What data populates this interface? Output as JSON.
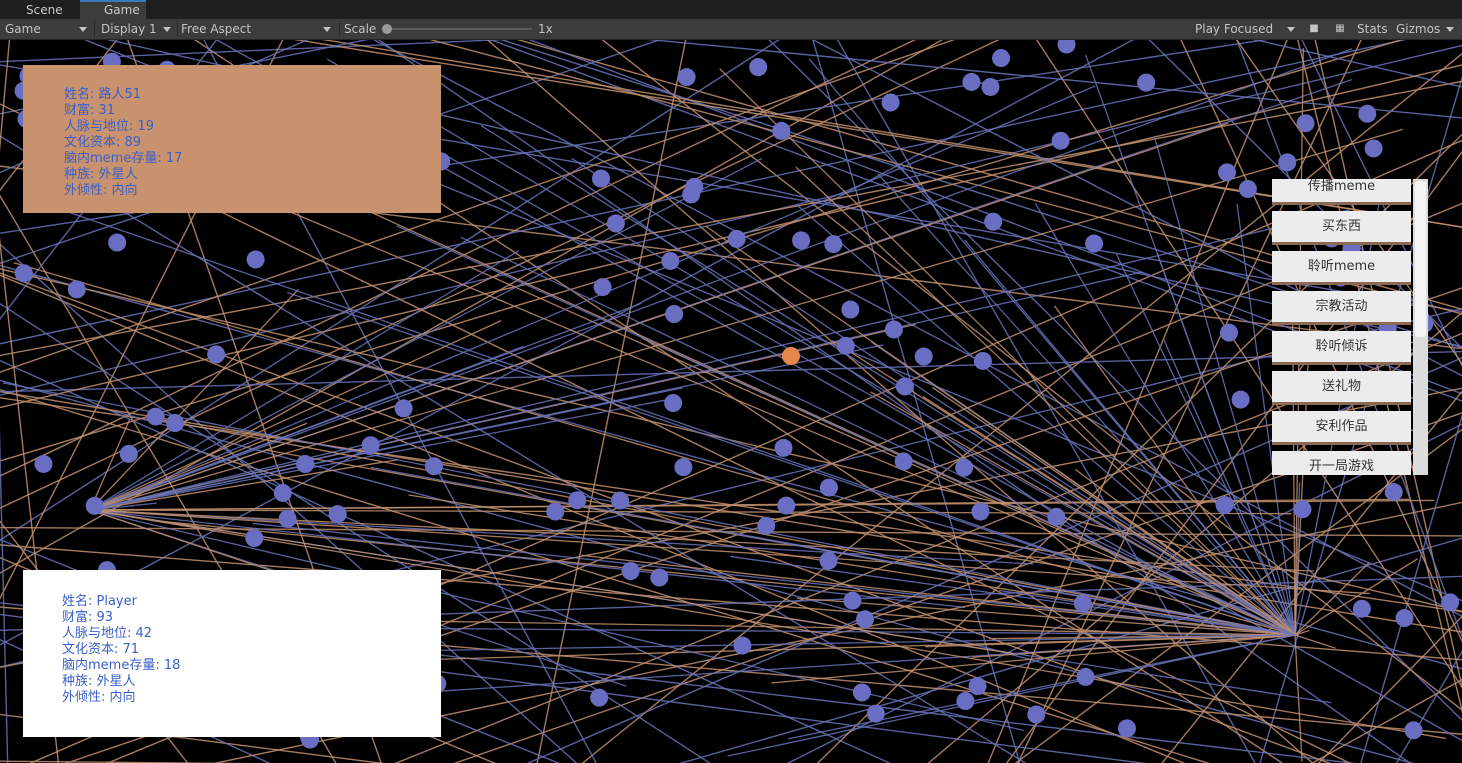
{
  "tabs": [
    "Scene",
    "Game"
  ],
  "toolbar": {
    "view": "Game",
    "display": "Display 1",
    "aspect": "Free Aspect",
    "scale_label": "Scale",
    "scale_value": "1x",
    "play_mode": "Play Focused",
    "stats": "Stats",
    "gizmos": "Gizmos"
  },
  "npc_panel": {
    "lines": [
      "姓名: 路人51",
      "财富: 31",
      "人脉与地位: 19",
      "文化资本: 89",
      "脑内meme存量: 17",
      "种族: 外星人",
      "外倾性: 内向"
    ]
  },
  "player_panel": {
    "lines": [
      "姓名: Player",
      "财富: 93",
      "人脉与地位: 42",
      "文化资本: 71",
      "脑内meme存量: 18",
      "种族: 外星人",
      "外倾性: 内向"
    ]
  },
  "actions": [
    "传播meme",
    "买东西",
    "聆听meme",
    "宗教活动",
    "聆听倾诉",
    "送礼物",
    "安利作品",
    "开一局游戏"
  ]
}
